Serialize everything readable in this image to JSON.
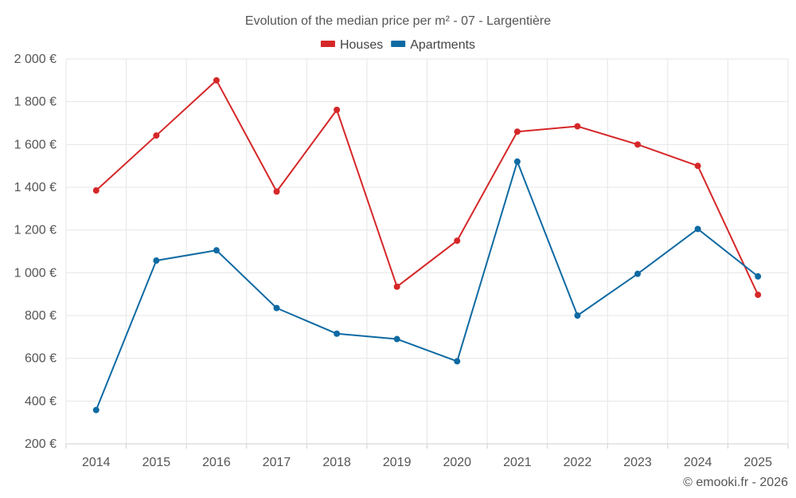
{
  "chart_data": {
    "type": "line",
    "title": "Evolution of the median price per m² - 07 - Largentière",
    "categories": [
      "2014",
      "2015",
      "2016",
      "2017",
      "2018",
      "2019",
      "2020",
      "2021",
      "2022",
      "2023",
      "2024",
      "2025"
    ],
    "series": [
      {
        "name": "Houses",
        "color": "#d62728",
        "values": [
          1385,
          1642,
          1900,
          1380,
          1762,
          935,
          1150,
          1660,
          1685,
          1600,
          1500,
          897
        ]
      },
      {
        "name": "Apartments",
        "color": "#0e6aa2",
        "values": [
          358,
          1057,
          1105,
          835,
          715,
          690,
          586,
          1520,
          800,
          995,
          1205,
          983
        ]
      }
    ],
    "ylim": [
      200,
      2000
    ],
    "yticks": [
      200,
      400,
      600,
      800,
      1000,
      1200,
      1400,
      1600,
      1800,
      2000
    ],
    "ytick_labels": [
      "200 €",
      "400 €",
      "600 €",
      "800 €",
      "1 000 €",
      "1 200 €",
      "1 400 €",
      "1 600 €",
      "1 800 €",
      "2 000 €"
    ],
    "grid": true,
    "legend_position": "top-center",
    "credit": "© emooki.fr - 2026"
  }
}
